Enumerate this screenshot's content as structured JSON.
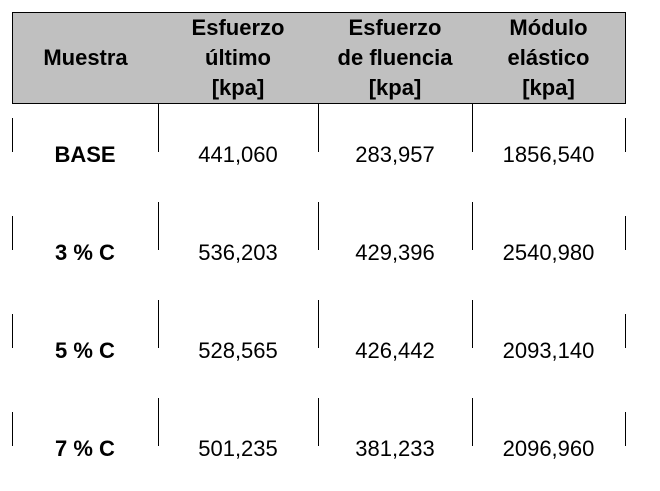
{
  "table": {
    "header": [
      [
        "Muestra"
      ],
      [
        "Esfuerzo",
        "último",
        "[kpa]"
      ],
      [
        "Esfuerzo",
        "de fluencia",
        "[kpa]"
      ],
      [
        "Módulo",
        "elástico",
        "[kpa]"
      ]
    ],
    "rows": [
      [
        "BASE",
        "441,060",
        "283,957",
        "1856,540"
      ],
      [
        "3 % C",
        "536,203",
        "429,396",
        "2540,980"
      ],
      [
        "5 % C",
        "528,565",
        "426,442",
        "2093,140"
      ],
      [
        "7 % C",
        "501,235",
        "381,233",
        "2096,960"
      ]
    ]
  }
}
